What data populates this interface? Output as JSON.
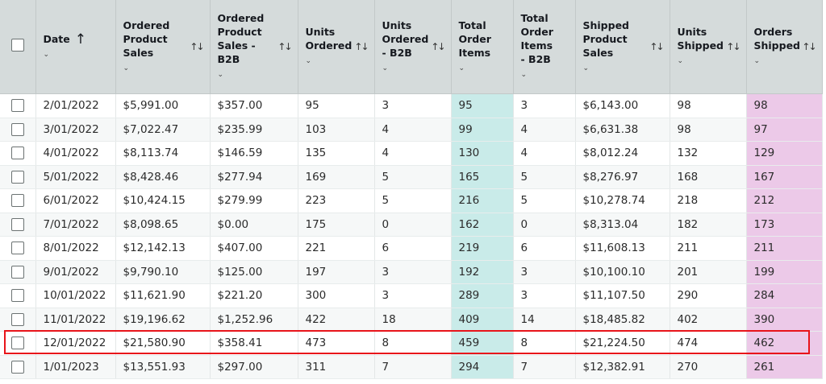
{
  "header": {
    "date": "Date",
    "ordered_product_sales": "Ordered Product Sales",
    "ordered_product_sales_b2b": "Ordered Product Sales - B2B",
    "units_ordered": "Units Ordered",
    "units_ordered_b2b": "Units Ordered - B2B",
    "total_order_items": "Total Order Items",
    "total_order_items_b2b": "Total Order Items - B2B",
    "shipped_product_sales": "Shipped Product Sales",
    "units_shipped": "Units Shipped",
    "orders_shipped": "Orders Shipped",
    "chevron": "⌄",
    "sort_icon": "↑↓",
    "sort_up": "↑"
  },
  "rows": [
    [
      "2/01/2022",
      "$5,991.00",
      "$357.00",
      "95",
      "3",
      "95",
      "3",
      "$6,143.00",
      "98",
      "98"
    ],
    [
      "3/01/2022",
      "$7,022.47",
      "$235.99",
      "103",
      "4",
      "99",
      "4",
      "$6,631.38",
      "98",
      "97"
    ],
    [
      "4/01/2022",
      "$8,113.74",
      "$146.59",
      "135",
      "4",
      "130",
      "4",
      "$8,012.24",
      "132",
      "129"
    ],
    [
      "5/01/2022",
      "$8,428.46",
      "$277.94",
      "169",
      "5",
      "165",
      "5",
      "$8,276.97",
      "168",
      "167"
    ],
    [
      "6/01/2022",
      "$10,424.15",
      "$279.99",
      "223",
      "5",
      "216",
      "5",
      "$10,278.74",
      "218",
      "212"
    ],
    [
      "7/01/2022",
      "$8,098.65",
      "$0.00",
      "175",
      "0",
      "162",
      "0",
      "$8,313.04",
      "182",
      "173"
    ],
    [
      "8/01/2022",
      "$12,142.13",
      "$407.00",
      "221",
      "6",
      "219",
      "6",
      "$11,608.13",
      "211",
      "211"
    ],
    [
      "9/01/2022",
      "$9,790.10",
      "$125.00",
      "197",
      "3",
      "192",
      "3",
      "$10,100.10",
      "201",
      "199"
    ],
    [
      "10/01/2022",
      "$11,621.90",
      "$221.20",
      "300",
      "3",
      "289",
      "3",
      "$11,107.50",
      "290",
      "284"
    ],
    [
      "11/01/2022",
      "$19,196.62",
      "$1,252.96",
      "422",
      "18",
      "409",
      "14",
      "$18,485.82",
      "402",
      "390"
    ],
    [
      "12/01/2022",
      "$21,580.90",
      "$358.41",
      "473",
      "8",
      "459",
      "8",
      "$21,224.50",
      "474",
      "462"
    ],
    [
      "1/01/2023",
      "$13,551.93",
      "$297.00",
      "311",
      "7",
      "294",
      "7",
      "$12,382.91",
      "270",
      "261"
    ]
  ],
  "colors": {
    "header_bg": "#d5dbdb",
    "teal": "#c9ebe9",
    "pink": "#ecc9e8",
    "highlight": "#e8141a"
  }
}
